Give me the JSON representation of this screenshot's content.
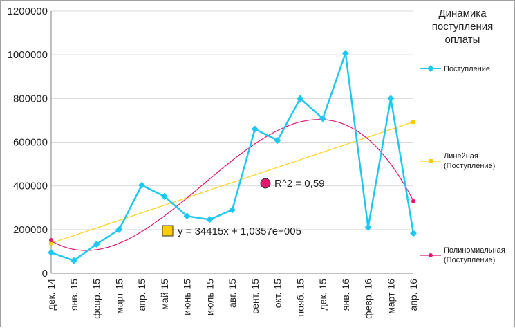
{
  "chart_data": {
    "type": "line",
    "title": [
      "Динамика",
      "поступления",
      "оплаты"
    ],
    "xlabel": "",
    "ylabel": "",
    "categories": [
      "дек. 14",
      "янв. 15",
      "февр. 15",
      "март 15",
      "апр. 15",
      "май 15",
      "июнь 15",
      "июль 15",
      "авг. 15",
      "сент. 15",
      "окт. 15",
      "нояб. 15",
      "дек. 15",
      "янв. 16",
      "февр. 16",
      "март 16",
      "апр. 16"
    ],
    "ylim": [
      0,
      1200000
    ],
    "yticks": [
      "0",
      "200000",
      "400000",
      "600000",
      "800000",
      "1000000",
      "1200000"
    ],
    "grid": true,
    "legend_position": "right",
    "series": [
      {
        "name": "Поступление",
        "color": "#1fc8f0",
        "marker": "diamond",
        "values": [
          95000,
          58000,
          133000,
          200000,
          403000,
          352000,
          262000,
          246000,
          290000,
          660000,
          608000,
          800000,
          708000,
          1007000,
          210000,
          800000,
          183000
        ]
      }
    ],
    "trendlines": [
      {
        "name": [
          "Линейная",
          "(Поступление)"
        ],
        "type": "linear",
        "color": "#ffd21a",
        "marker": "square",
        "equation": "y = 34415x + 1,0357e+005",
        "endpoints": [
          138000,
          693000
        ]
      },
      {
        "name": [
          "Полиномиальная",
          "(Поступление)"
        ],
        "type": "polynomial",
        "color": "#e0186e",
        "marker": "circle",
        "r_squared": "R^2 = 0,59",
        "endpoints": [
          152000,
          330000
        ]
      }
    ]
  }
}
